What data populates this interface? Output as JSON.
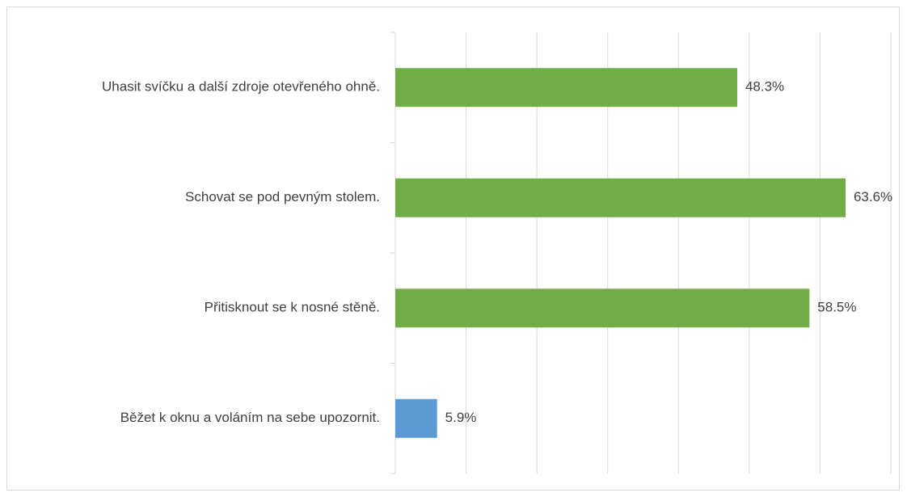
{
  "chart_data": {
    "type": "bar",
    "orientation": "horizontal",
    "categories": [
      "Uhasit svíčku a další zdroje otevřeného ohně.",
      "Schovat se pod pevným stolem.",
      "Přitisknout se k nosné stěně.",
      "Běžet k oknu a voláním na sebe upozornit."
    ],
    "values": [
      48.3,
      63.6,
      58.5,
      5.9
    ],
    "value_labels": [
      "48.3%",
      "63.6%",
      "58.5%",
      "5.9%"
    ],
    "colors": [
      "#70ad47",
      "#70ad47",
      "#70ad47",
      "#5b9bd5"
    ],
    "xlim": [
      0,
      70
    ],
    "xticks": [
      0,
      10,
      20,
      30,
      40,
      50,
      60,
      70
    ],
    "grid": true
  }
}
